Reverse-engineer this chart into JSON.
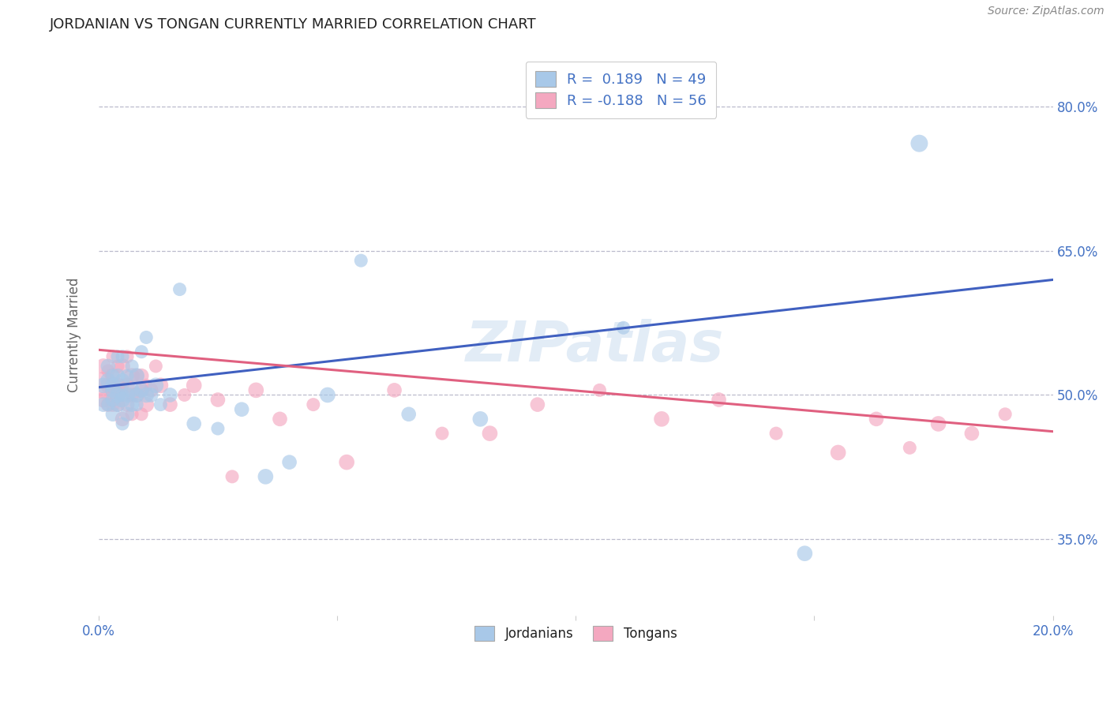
{
  "title": "JORDANIAN VS TONGAN CURRENTLY MARRIED CORRELATION CHART",
  "source": "Source: ZipAtlas.com",
  "ylabel_label": "Currently Married",
  "xlim": [
    0.0,
    0.2
  ],
  "ylim": [
    0.27,
    0.855
  ],
  "xticks": [
    0.0,
    0.05,
    0.1,
    0.15,
    0.2
  ],
  "xtick_labels": [
    "0.0%",
    "",
    "",
    "",
    "20.0%"
  ],
  "ytick_labels": [
    "35.0%",
    "50.0%",
    "65.0%",
    "80.0%"
  ],
  "yticks": [
    0.35,
    0.5,
    0.65,
    0.8
  ],
  "legend_r_blue": "0.189",
  "legend_n_blue": "49",
  "legend_r_pink": "-0.188",
  "legend_n_pink": "56",
  "legend_label_blue": "Jordanians",
  "legend_label_pink": "Tongans",
  "blue_color": "#a8c8e8",
  "pink_color": "#f4a8c0",
  "line_blue_color": "#4060c0",
  "line_pink_color": "#e06080",
  "title_color": "#222222",
  "source_color": "#888888",
  "axis_label_color": "#666666",
  "tick_label_color": "#4472c4",
  "background_color": "#ffffff",
  "grid_color": "#bbbbcc",
  "blue_line_x0": 0.0,
  "blue_line_y0": 0.508,
  "blue_line_x1": 0.2,
  "blue_line_y1": 0.62,
  "pink_line_x0": 0.0,
  "pink_line_y0": 0.547,
  "pink_line_x1": 0.2,
  "pink_line_y1": 0.462,
  "jordanian_x": [
    0.001,
    0.001,
    0.002,
    0.002,
    0.002,
    0.003,
    0.003,
    0.003,
    0.003,
    0.003,
    0.004,
    0.004,
    0.004,
    0.004,
    0.005,
    0.005,
    0.005,
    0.005,
    0.005,
    0.006,
    0.006,
    0.006,
    0.007,
    0.007,
    0.007,
    0.008,
    0.008,
    0.008,
    0.009,
    0.009,
    0.01,
    0.01,
    0.011,
    0.012,
    0.013,
    0.015,
    0.017,
    0.02,
    0.025,
    0.03,
    0.035,
    0.04,
    0.048,
    0.055,
    0.065,
    0.08,
    0.11,
    0.148,
    0.172
  ],
  "jordanian_y": [
    0.51,
    0.49,
    0.515,
    0.49,
    0.53,
    0.48,
    0.505,
    0.52,
    0.495,
    0.51,
    0.5,
    0.52,
    0.54,
    0.49,
    0.47,
    0.495,
    0.515,
    0.5,
    0.54,
    0.48,
    0.5,
    0.52,
    0.49,
    0.505,
    0.53,
    0.5,
    0.52,
    0.49,
    0.505,
    0.545,
    0.5,
    0.56,
    0.5,
    0.51,
    0.49,
    0.5,
    0.61,
    0.47,
    0.465,
    0.485,
    0.415,
    0.43,
    0.5,
    0.64,
    0.48,
    0.475,
    0.57,
    0.335,
    0.762
  ],
  "jordanian_size": [
    200,
    180,
    200,
    150,
    180,
    180,
    200,
    150,
    180,
    200,
    200,
    180,
    150,
    180,
    150,
    200,
    180,
    150,
    150,
    180,
    200,
    150,
    180,
    200,
    150,
    180,
    200,
    150,
    180,
    150,
    200,
    150,
    180,
    200,
    150,
    180,
    150,
    180,
    150,
    180,
    200,
    180,
    200,
    150,
    180,
    200,
    150,
    200,
    250
  ],
  "tongan_x": [
    0.001,
    0.001,
    0.001,
    0.002,
    0.002,
    0.002,
    0.003,
    0.003,
    0.003,
    0.003,
    0.004,
    0.004,
    0.004,
    0.004,
    0.005,
    0.005,
    0.005,
    0.006,
    0.006,
    0.006,
    0.007,
    0.007,
    0.007,
    0.008,
    0.008,
    0.009,
    0.009,
    0.009,
    0.01,
    0.01,
    0.011,
    0.012,
    0.013,
    0.015,
    0.018,
    0.02,
    0.025,
    0.028,
    0.033,
    0.038,
    0.045,
    0.052,
    0.062,
    0.072,
    0.082,
    0.092,
    0.105,
    0.118,
    0.13,
    0.142,
    0.155,
    0.163,
    0.17,
    0.176,
    0.183,
    0.19
  ],
  "tongan_y": [
    0.51,
    0.495,
    0.53,
    0.51,
    0.49,
    0.525,
    0.505,
    0.49,
    0.52,
    0.54,
    0.49,
    0.51,
    0.53,
    0.5,
    0.475,
    0.51,
    0.53,
    0.49,
    0.51,
    0.54,
    0.5,
    0.52,
    0.48,
    0.5,
    0.52,
    0.48,
    0.505,
    0.52,
    0.49,
    0.51,
    0.505,
    0.53,
    0.51,
    0.49,
    0.5,
    0.51,
    0.495,
    0.415,
    0.505,
    0.475,
    0.49,
    0.43,
    0.505,
    0.46,
    0.46,
    0.49,
    0.505,
    0.475,
    0.495,
    0.46,
    0.44,
    0.475,
    0.445,
    0.47,
    0.46,
    0.48
  ],
  "tongan_size": [
    600,
    200,
    200,
    200,
    180,
    150,
    200,
    180,
    200,
    150,
    180,
    200,
    150,
    200,
    180,
    150,
    200,
    180,
    200,
    150,
    180,
    200,
    150,
    200,
    180,
    150,
    200,
    180,
    200,
    150,
    180,
    150,
    200,
    180,
    150,
    200,
    180,
    150,
    200,
    180,
    150,
    200,
    180,
    150,
    200,
    180,
    150,
    200,
    180,
    150,
    200,
    180,
    150,
    200,
    180,
    150
  ]
}
